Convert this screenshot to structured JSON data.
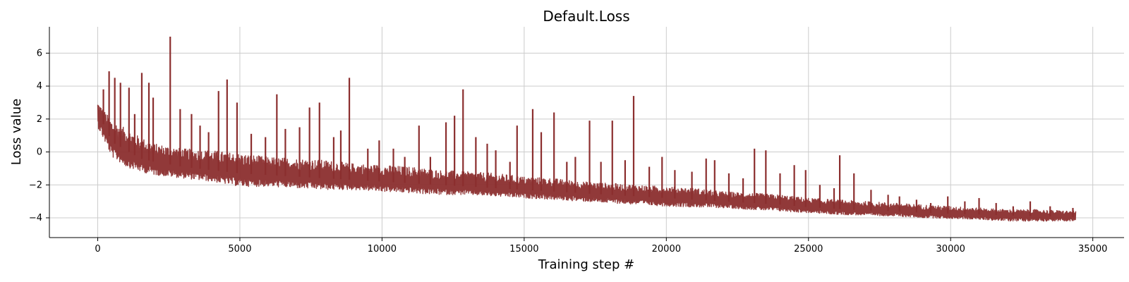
{
  "chart_data": {
    "type": "line",
    "title": "Default.Loss",
    "xlabel": "Training step #",
    "ylabel": "Loss value",
    "xlim": [
      -1700,
      36100
    ],
    "ylim": [
      -5.2,
      7.6
    ],
    "x_ticks": [
      0,
      5000,
      10000,
      15000,
      20000,
      25000,
      30000,
      35000
    ],
    "y_ticks": [
      -4,
      -2,
      0,
      2,
      4,
      6
    ],
    "x_tick_labels": [
      "0",
      "5000",
      "10000",
      "15000",
      "20000",
      "25000",
      "30000",
      "35000"
    ],
    "y_tick_labels": [
      "−4",
      "−2",
      "0",
      "2",
      "4",
      "6"
    ],
    "grid": true,
    "color": "#8b2e2e",
    "series": [
      {
        "x": [
          0,
          500,
          1000,
          1500,
          2000,
          3000,
          4000,
          5000,
          6000,
          7000,
          8000,
          9000,
          10000,
          11000,
          12000,
          13000,
          14000,
          15000,
          16000,
          17000,
          18000,
          19000,
          20000,
          21000,
          22000,
          23000,
          24000,
          25000,
          26000,
          27000,
          28000,
          29000,
          30000,
          31000,
          32000,
          33000,
          34400
        ],
        "mean": [
          2.4,
          0.6,
          0.1,
          -0.4,
          -0.6,
          -0.9,
          -1.1,
          -1.3,
          -1.4,
          -1.5,
          -1.6,
          -1.7,
          -1.8,
          -1.9,
          -2.0,
          -2.1,
          -2.2,
          -2.3,
          -2.4,
          -2.5,
          -2.6,
          -2.7,
          -2.8,
          -2.9,
          -3.0,
          -3.1,
          -3.2,
          -3.35,
          -3.45,
          -3.55,
          -3.6,
          -3.7,
          -3.75,
          -3.8,
          -3.85,
          -3.9,
          -3.95
        ],
        "band_low": [
          1.5,
          -0.3,
          -0.9,
          -1.2,
          -1.4,
          -1.6,
          -1.8,
          -2.1,
          -2.1,
          -2.2,
          -2.3,
          -2.3,
          -2.4,
          -2.5,
          -2.6,
          -2.6,
          -2.7,
          -2.8,
          -2.9,
          -3.0,
          -3.1,
          -3.2,
          -3.3,
          -3.35,
          -3.4,
          -3.5,
          -3.6,
          -3.7,
          -3.8,
          -3.85,
          -3.9,
          -4.0,
          -4.05,
          -4.1,
          -4.2,
          -4.2,
          -4.2
        ],
        "band_high": [
          3.0,
          1.9,
          1.4,
          0.9,
          0.5,
          0.2,
          0.1,
          -0.1,
          -0.3,
          -0.4,
          -0.5,
          -0.7,
          -0.8,
          -0.9,
          -1.1,
          -1.2,
          -1.3,
          -1.5,
          -1.6,
          -1.8,
          -1.9,
          -2.0,
          -2.1,
          -2.2,
          -2.4,
          -2.5,
          -2.6,
          -2.8,
          -2.9,
          -3.0,
          -3.1,
          -3.2,
          -3.3,
          -3.4,
          -3.5,
          -3.5,
          -3.6
        ],
        "spikes": [
          [
            200,
            3.8
          ],
          [
            400,
            4.9
          ],
          [
            600,
            4.5
          ],
          [
            800,
            4.2
          ],
          [
            1100,
            3.9
          ],
          [
            1300,
            2.3
          ],
          [
            1550,
            4.8
          ],
          [
            1800,
            4.2
          ],
          [
            1950,
            3.3
          ],
          [
            2550,
            7.0
          ],
          [
            2900,
            2.6
          ],
          [
            3300,
            2.3
          ],
          [
            3600,
            1.6
          ],
          [
            3900,
            1.2
          ],
          [
            4250,
            3.7
          ],
          [
            4550,
            4.4
          ],
          [
            4900,
            3.0
          ],
          [
            5400,
            1.1
          ],
          [
            5900,
            0.9
          ],
          [
            6300,
            3.5
          ],
          [
            6600,
            1.4
          ],
          [
            7100,
            1.5
          ],
          [
            7450,
            2.7
          ],
          [
            7800,
            3.0
          ],
          [
            8300,
            0.9
          ],
          [
            8550,
            1.3
          ],
          [
            8850,
            4.5
          ],
          [
            9500,
            0.2
          ],
          [
            9900,
            0.7
          ],
          [
            10400,
            0.2
          ],
          [
            10800,
            -0.3
          ],
          [
            11300,
            1.6
          ],
          [
            11700,
            -0.3
          ],
          [
            12250,
            1.8
          ],
          [
            12550,
            2.2
          ],
          [
            12850,
            3.8
          ],
          [
            13300,
            0.9
          ],
          [
            13700,
            0.5
          ],
          [
            14000,
            0.1
          ],
          [
            14500,
            -0.6
          ],
          [
            14750,
            1.6
          ],
          [
            15300,
            2.6
          ],
          [
            15600,
            1.2
          ],
          [
            16050,
            2.4
          ],
          [
            16500,
            -0.6
          ],
          [
            16800,
            -0.3
          ],
          [
            17300,
            1.9
          ],
          [
            17700,
            -0.6
          ],
          [
            18100,
            1.9
          ],
          [
            18550,
            -0.5
          ],
          [
            18850,
            3.4
          ],
          [
            19400,
            -0.9
          ],
          [
            19850,
            -0.3
          ],
          [
            20300,
            -1.1
          ],
          [
            20900,
            -1.2
          ],
          [
            21400,
            -0.4
          ],
          [
            21700,
            -0.5
          ],
          [
            22200,
            -1.3
          ],
          [
            22700,
            -1.6
          ],
          [
            23100,
            0.2
          ],
          [
            23500,
            0.1
          ],
          [
            24000,
            -1.3
          ],
          [
            24500,
            -0.8
          ],
          [
            24900,
            -1.1
          ],
          [
            25400,
            -2.0
          ],
          [
            25900,
            -2.2
          ],
          [
            26100,
            -0.2
          ],
          [
            26600,
            -1.3
          ],
          [
            27200,
            -2.3
          ],
          [
            27800,
            -2.6
          ],
          [
            28200,
            -2.7
          ],
          [
            28800,
            -2.9
          ],
          [
            29300,
            -3.1
          ],
          [
            29900,
            -2.7
          ],
          [
            30500,
            -3.0
          ],
          [
            31000,
            -2.8
          ],
          [
            31600,
            -3.1
          ],
          [
            32200,
            -3.3
          ],
          [
            32800,
            -3.0
          ],
          [
            33500,
            -3.3
          ],
          [
            34300,
            -3.4
          ]
        ]
      }
    ]
  }
}
